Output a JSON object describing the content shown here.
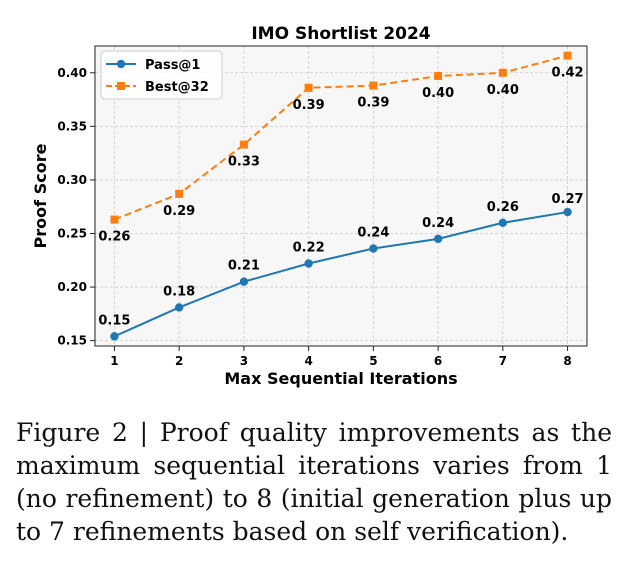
{
  "chart_data": {
    "type": "line",
    "title": "IMO Shortlist 2024",
    "xlabel": "Max Sequential Iterations",
    "ylabel": "Proof Score",
    "x": [
      1,
      2,
      3,
      4,
      5,
      6,
      7,
      8
    ],
    "xticks": [
      "1",
      "2",
      "3",
      "4",
      "5",
      "6",
      "7",
      "8"
    ],
    "xlim": [
      0.7,
      8.3
    ],
    "ylim": [
      0.145,
      0.425
    ],
    "yticks": [
      "0.15",
      "0.20",
      "0.25",
      "0.30",
      "0.35",
      "0.40"
    ],
    "grid": true,
    "legend_position": "top-left",
    "series": [
      {
        "name": "Pass@1",
        "color": "#1f77b4",
        "line_style": "solid",
        "marker": "circle",
        "values": [
          0.154,
          0.181,
          0.205,
          0.222,
          0.236,
          0.245,
          0.26,
          0.27
        ],
        "labels": [
          "0.15",
          "0.18",
          "0.21",
          "0.22",
          "0.24",
          "0.24",
          "0.26",
          "0.27"
        ]
      },
      {
        "name": "Best@32",
        "color": "#ff7f0e",
        "line_style": "dashed",
        "marker": "square",
        "values": [
          0.263,
          0.287,
          0.333,
          0.386,
          0.388,
          0.397,
          0.4,
          0.416
        ],
        "labels": [
          "0.26",
          "0.29",
          "0.33",
          "0.39",
          "0.39",
          "0.40",
          "0.40",
          "0.42"
        ]
      }
    ]
  },
  "caption": "Figure 2 | Proof quality improvements as the max­imum sequential iterations varies from 1 (no re­finement) to 8 (initial generation plus up to 7 re­finements based on self verification)."
}
